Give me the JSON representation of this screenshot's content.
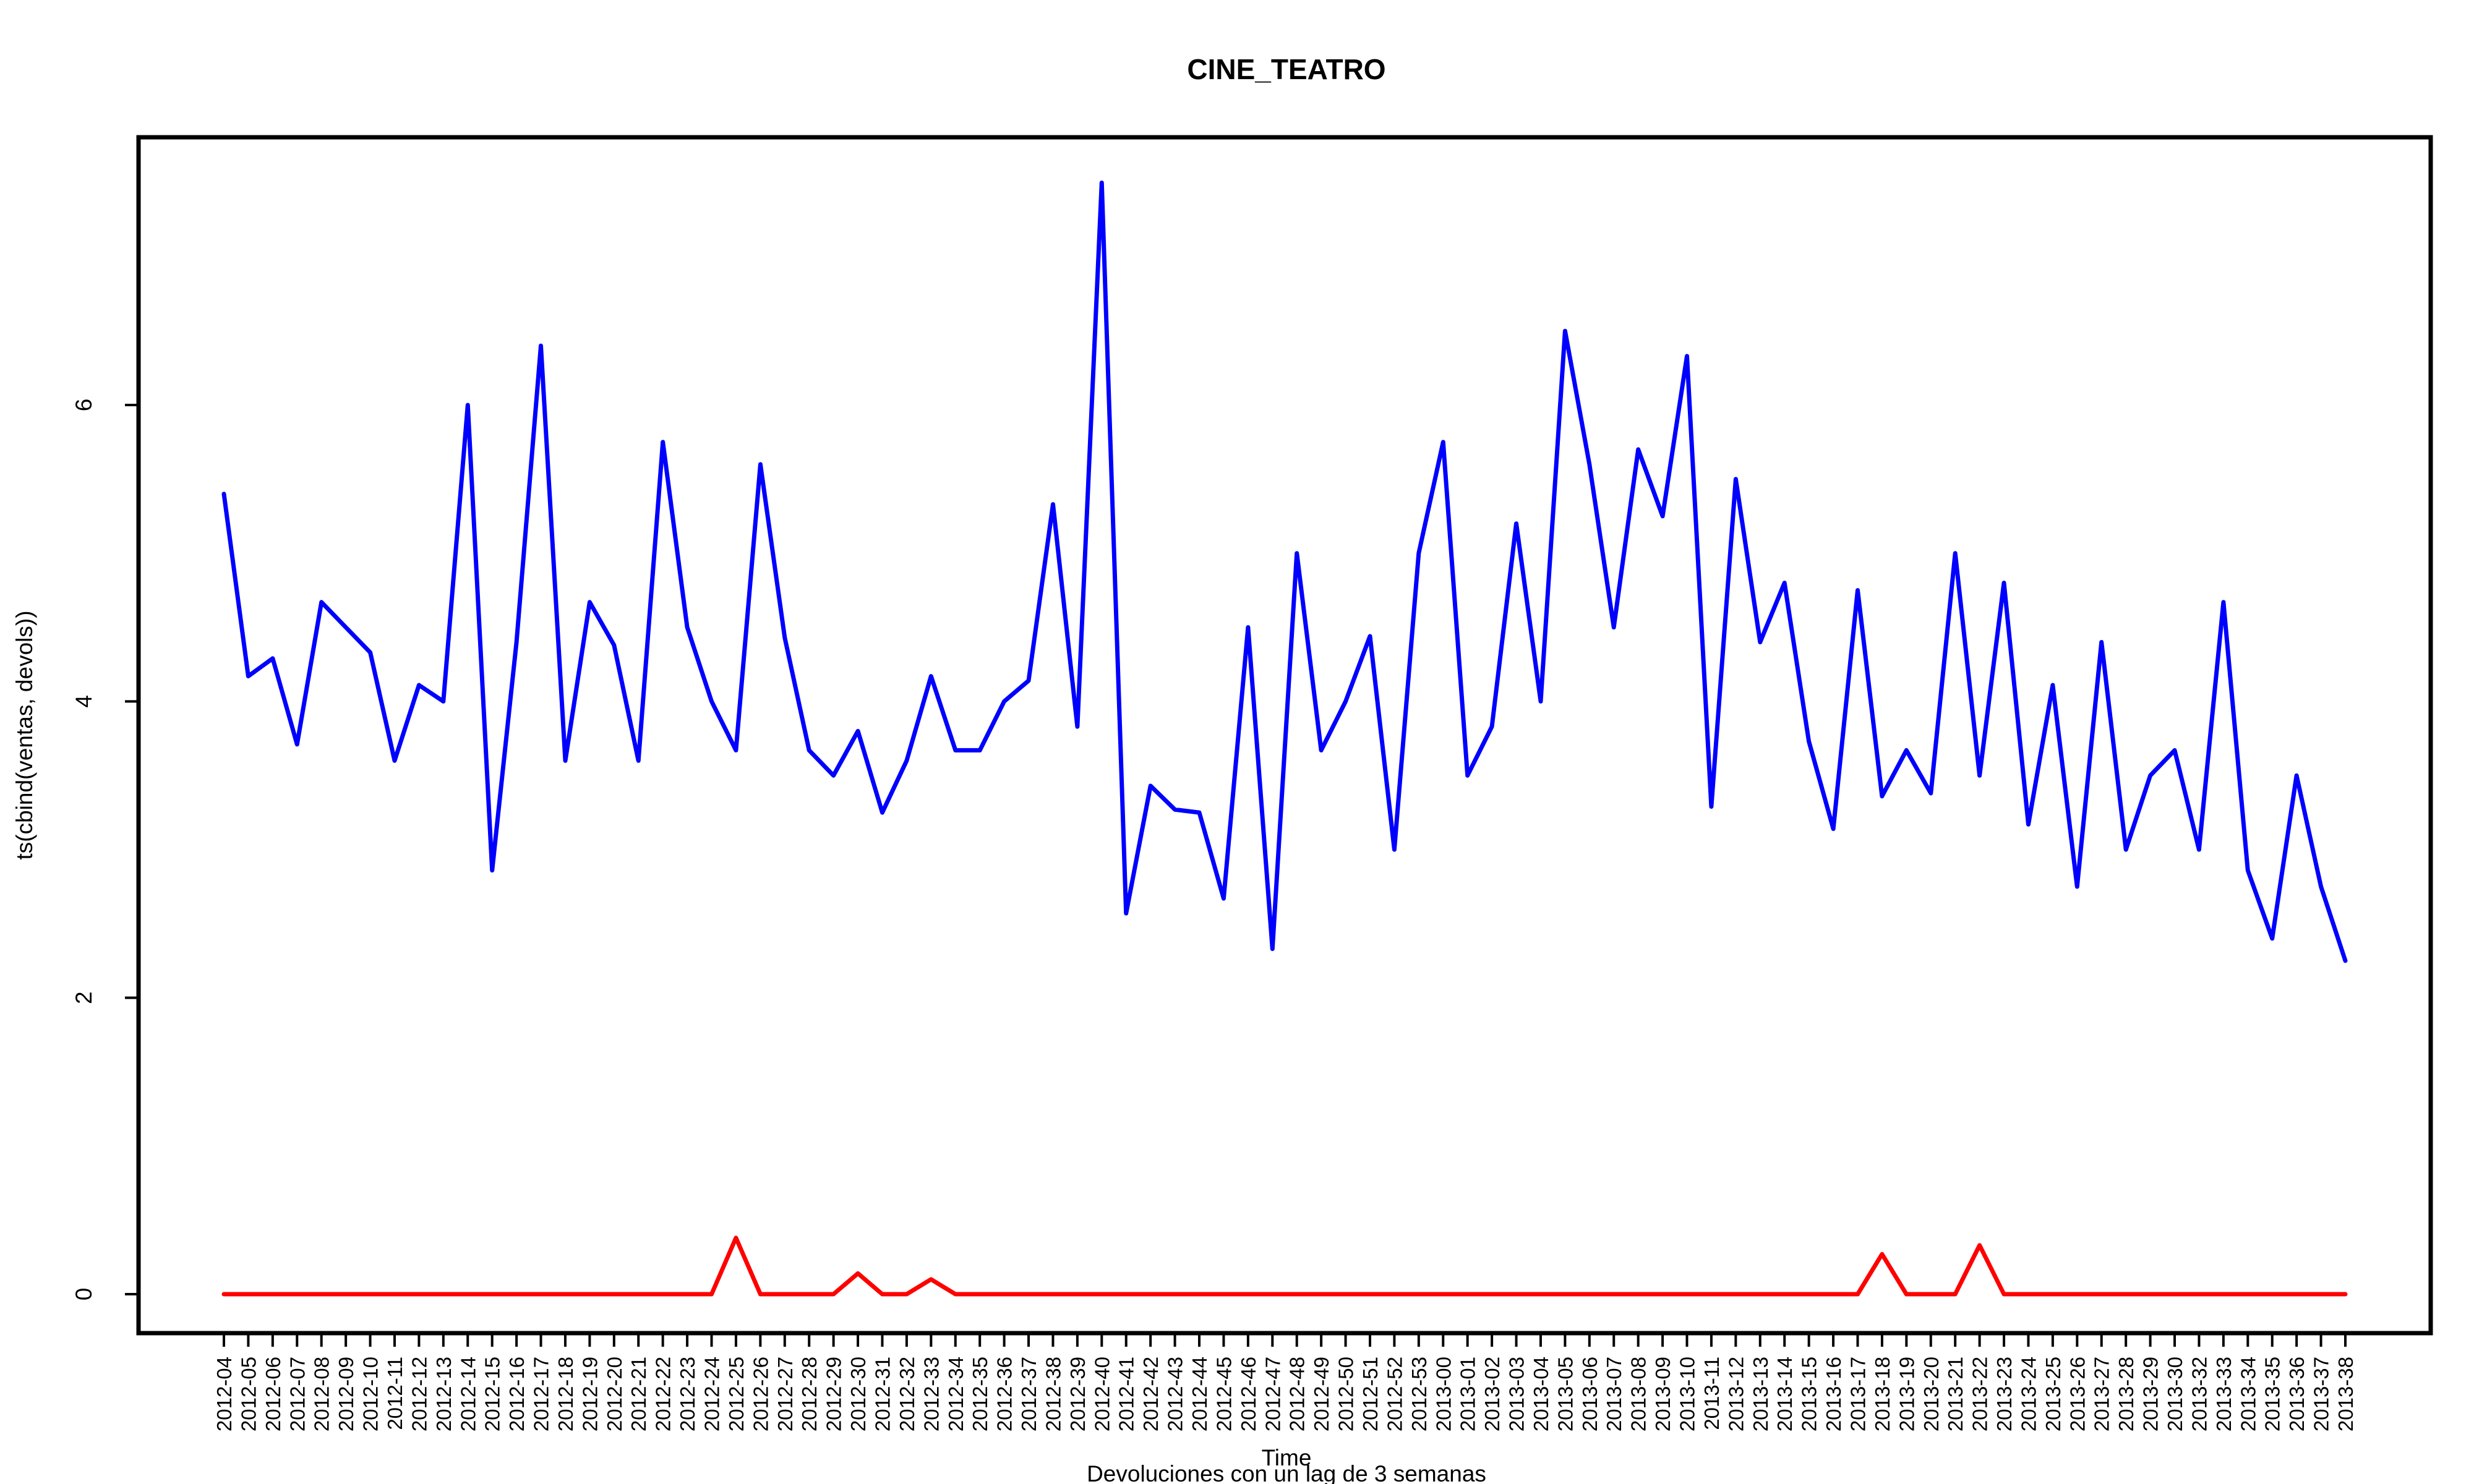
{
  "chart_data": {
    "type": "line",
    "title": "CINE_TEATRO",
    "xlabel": "Time",
    "ylabel": "ts(cbind(ventas, devols))",
    "subtitle": "Devoluciones con un lag de 3 semanas",
    "ylim": [
      -0.3,
      7.8
    ],
    "yticks": [
      0,
      2,
      4,
      6
    ],
    "grid": false,
    "colors": {
      "ventas": "#0000ff",
      "devols": "#ff0000"
    },
    "categories": [
      "2012-04",
      "2012-05",
      "2012-06",
      "2012-07",
      "2012-08",
      "2012-09",
      "2012-10",
      "2012-11",
      "2012-12",
      "2012-13",
      "2012-14",
      "2012-15",
      "2012-16",
      "2012-17",
      "2012-18",
      "2012-19",
      "2012-20",
      "2012-21",
      "2012-22",
      "2012-23",
      "2012-24",
      "2012-25",
      "2012-26",
      "2012-27",
      "2012-28",
      "2012-29",
      "2012-30",
      "2012-31",
      "2012-32",
      "2012-33",
      "2012-34",
      "2012-35",
      "2012-36",
      "2012-37",
      "2012-38",
      "2012-39",
      "2012-40",
      "2012-41",
      "2012-42",
      "2012-43",
      "2012-44",
      "2012-45",
      "2012-46",
      "2012-47",
      "2012-48",
      "2012-49",
      "2012-50",
      "2012-51",
      "2012-52",
      "2012-53",
      "2013-00",
      "2013-01",
      "2013-02",
      "2013-03",
      "2013-04",
      "2013-05",
      "2013-06",
      "2013-07",
      "2013-08",
      "2013-09",
      "2013-10",
      "2013-11",
      "2013-12",
      "2013-13",
      "2013-14",
      "2013-15",
      "2013-16",
      "2013-17",
      "2013-18",
      "2013-19",
      "2013-20",
      "2013-21",
      "2013-22",
      "2013-23",
      "2013-24",
      "2013-25",
      "2013-26",
      "2013-27",
      "2013-28",
      "2013-29",
      "2013-30",
      "2013-32",
      "2013-33",
      "2013-34",
      "2013-35",
      "2013-36",
      "2013-37",
      "2013-38"
    ],
    "series": [
      {
        "values": [
          5.4,
          4.17,
          4.29,
          3.71,
          4.67,
          4.5,
          4.33,
          3.6,
          4.11,
          4.0,
          6.0,
          2.86,
          4.4,
          6.4,
          3.6,
          4.67,
          4.38,
          3.6,
          5.75,
          4.5,
          4.0,
          3.67,
          5.6,
          4.43,
          3.67,
          3.5,
          3.8,
          3.25,
          3.6,
          4.17,
          3.67,
          3.67,
          4.0,
          4.14,
          5.33,
          3.83,
          7.5,
          2.57,
          3.43,
          3.27,
          3.25,
          2.67,
          4.5,
          2.33,
          5.0,
          3.67,
          4.0,
          4.44,
          3.0,
          5.0,
          5.75,
          3.5,
          3.83,
          5.2,
          4.0,
          6.5,
          5.6,
          4.5,
          5.7,
          5.25,
          6.33,
          3.29,
          5.5,
          4.4,
          4.8,
          3.73,
          3.14,
          4.75,
          3.36,
          3.67,
          3.38,
          5.0,
          3.5,
          4.8,
          3.17,
          4.11,
          2.75,
          4.4,
          3.0,
          3.5,
          3.67,
          3.0,
          4.67,
          2.86,
          2.4,
          3.5,
          2.75,
          2.25
        ]
      },
      {
        "values": [
          0,
          0,
          0,
          0,
          0,
          0,
          0,
          0,
          0,
          0,
          0,
          0,
          0,
          0,
          0,
          0,
          0,
          0,
          0,
          0,
          0,
          0.38,
          0,
          0,
          0,
          0,
          0.14,
          0,
          0,
          0.1,
          0,
          0,
          0,
          0,
          0,
          0,
          0,
          0,
          0,
          0,
          0,
          0,
          0,
          0,
          0,
          0,
          0,
          0,
          0,
          0,
          0,
          0,
          0,
          0,
          0,
          0,
          0,
          0,
          0,
          0,
          0,
          0,
          0,
          0,
          0,
          0,
          0,
          0,
          0.27,
          0,
          0,
          0,
          0.33,
          0,
          0,
          0,
          0,
          0,
          0,
          0,
          0,
          0,
          0,
          0,
          0,
          0,
          0,
          0
        ]
      }
    ]
  }
}
